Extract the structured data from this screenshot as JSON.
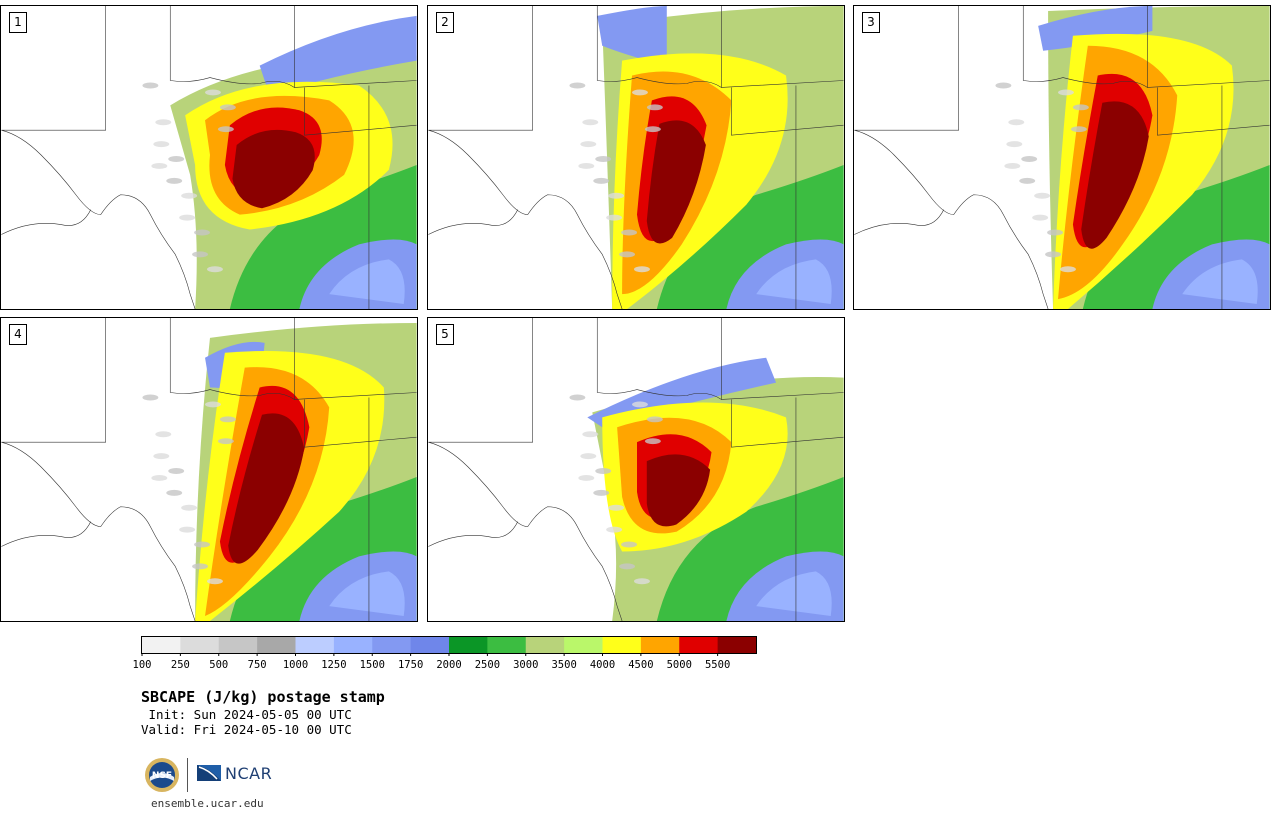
{
  "panels": [
    {
      "label": "1"
    },
    {
      "label": "2"
    },
    {
      "label": "3"
    },
    {
      "label": "4"
    },
    {
      "label": "5"
    }
  ],
  "colorbar": {
    "tick_labels": [
      "100",
      "250",
      "500",
      "750",
      "1000",
      "1250",
      "1500",
      "1750",
      "2000",
      "2500",
      "3000",
      "3500",
      "4000",
      "4500",
      "5000",
      "5500"
    ],
    "colors": [
      "#f2f2f2",
      "#dcdcdc",
      "#c6c6c6",
      "#a8a8a8",
      "#bccdff",
      "#99b2ff",
      "#8399f2",
      "#6f86ea",
      "#0b9626",
      "#3cbd41",
      "#b8d37a",
      "#baf76a",
      "#ffff1a",
      "#ffa500",
      "#e00000",
      "#8b0000"
    ]
  },
  "title": "SBCAPE (J/kg) postage stamp",
  "init": " Init: Sun 2024-05-05 00 UTC",
  "valid": "Valid: Fri 2024-05-10 00 UTC",
  "logos": {
    "left": "NSF",
    "right": "NCAR"
  },
  "url": "ensemble.ucar.edu"
}
